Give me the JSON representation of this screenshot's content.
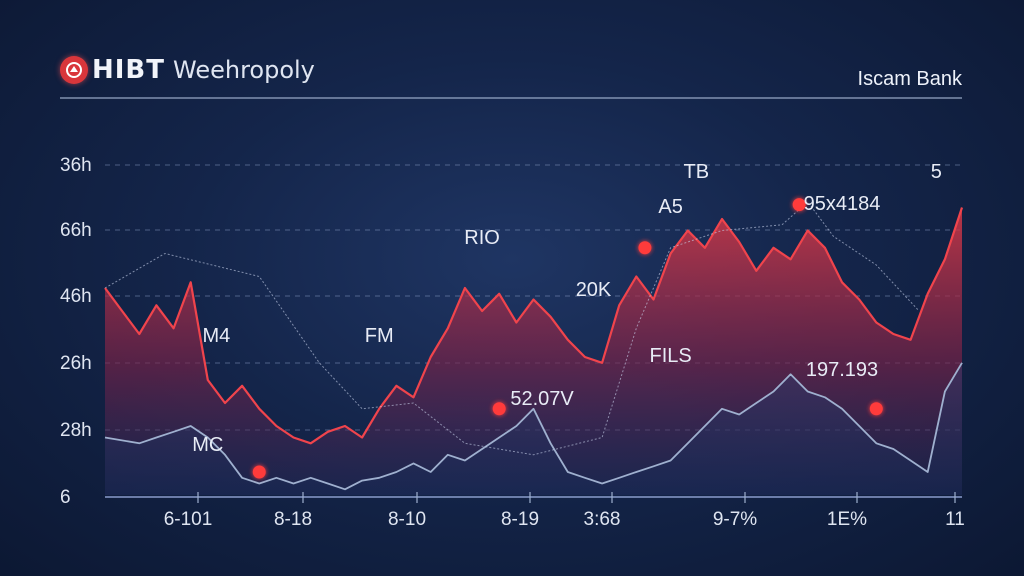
{
  "header": {
    "brand_name": "HIBT",
    "brand_sub": "Weehropoly",
    "bank_name": "Iscam Bank"
  },
  "colors": {
    "background": "#14254a",
    "accent_red": "#f0444c",
    "secondary_line": "#9fb0cf",
    "marker": "#ff3b3b"
  },
  "chart_data": {
    "type": "area",
    "title": "",
    "xlabel": "",
    "ylabel": "",
    "y_tick_labels": [
      "36h",
      "66h",
      "46h",
      "26h",
      "28h",
      "6"
    ],
    "x_tick_labels": [
      "6-101",
      "8-18",
      "8-10",
      "8-19",
      "3:68",
      "9-7%",
      "1E%",
      "11"
    ],
    "ylim": [
      0,
      6
    ],
    "grid": "dashed horizontal",
    "legend": "none",
    "annotations": [
      {
        "text": "TB",
        "x": 0.69,
        "y": 5.6
      },
      {
        "text": "5",
        "x": 0.97,
        "y": 5.6
      },
      {
        "text": "A5",
        "x": 0.66,
        "y": 5.0
      },
      {
        "text": "95x4184",
        "x": 0.86,
        "y": 5.05
      },
      {
        "text": "RIO",
        "x": 0.44,
        "y": 4.45
      },
      {
        "text": "20K",
        "x": 0.57,
        "y": 3.55
      },
      {
        "text": "M4",
        "x": 0.13,
        "y": 2.75
      },
      {
        "text": "FM",
        "x": 0.32,
        "y": 2.75
      },
      {
        "text": "FILS",
        "x": 0.66,
        "y": 2.4
      },
      {
        "text": "197.193",
        "x": 0.86,
        "y": 2.15
      },
      {
        "text": "52.07V",
        "x": 0.51,
        "y": 1.65
      },
      {
        "text": "MC",
        "x": 0.12,
        "y": 0.85
      }
    ],
    "series": [
      {
        "style": "red area",
        "x": [
          0.0,
          0.02,
          0.04,
          0.06,
          0.08,
          0.1,
          0.12,
          0.14,
          0.16,
          0.18,
          0.2,
          0.22,
          0.24,
          0.26,
          0.28,
          0.3,
          0.32,
          0.34,
          0.36,
          0.38,
          0.4,
          0.42,
          0.44,
          0.46,
          0.48,
          0.5,
          0.52,
          0.54,
          0.56,
          0.58,
          0.6,
          0.62,
          0.64,
          0.66,
          0.68,
          0.7,
          0.72,
          0.74,
          0.76,
          0.78,
          0.8,
          0.82,
          0.84,
          0.86,
          0.88,
          0.9,
          0.92,
          0.94,
          0.96,
          0.98,
          1.0
        ],
        "y": [
          3.6,
          3.2,
          2.8,
          3.3,
          2.9,
          3.7,
          2.0,
          1.6,
          1.9,
          1.5,
          1.2,
          1.0,
          0.9,
          1.1,
          1.2,
          1.0,
          1.5,
          1.9,
          1.7,
          2.4,
          2.9,
          3.6,
          3.2,
          3.5,
          3.0,
          3.4,
          3.1,
          2.7,
          2.4,
          2.3,
          3.3,
          3.8,
          3.4,
          4.2,
          4.6,
          4.3,
          4.8,
          4.4,
          3.9,
          4.3,
          4.1,
          4.6,
          4.3,
          3.7,
          3.4,
          3.0,
          2.8,
          2.7,
          3.5,
          4.1,
          5.0
        ]
      },
      {
        "style": "grey line",
        "x": [
          0.0,
          0.04,
          0.06,
          0.08,
          0.1,
          0.12,
          0.14,
          0.16,
          0.18,
          0.2,
          0.22,
          0.24,
          0.26,
          0.28,
          0.3,
          0.32,
          0.34,
          0.36,
          0.38,
          0.4,
          0.42,
          0.44,
          0.46,
          0.48,
          0.5,
          0.52,
          0.54,
          0.56,
          0.58,
          0.6,
          0.62,
          0.64,
          0.66,
          0.68,
          0.7,
          0.72,
          0.74,
          0.76,
          0.78,
          0.8,
          0.82,
          0.84,
          0.86,
          0.88,
          0.9,
          0.92,
          0.94,
          0.96,
          0.98,
          1.0
        ],
        "y": [
          1.0,
          0.9,
          1.0,
          1.1,
          1.2,
          1.0,
          0.7,
          0.3,
          0.2,
          0.3,
          0.2,
          0.3,
          0.2,
          0.1,
          0.25,
          0.3,
          0.4,
          0.55,
          0.4,
          0.7,
          0.6,
          0.8,
          1.0,
          1.2,
          1.5,
          0.9,
          0.4,
          0.3,
          0.2,
          0.3,
          0.4,
          0.5,
          0.6,
          0.9,
          1.2,
          1.5,
          1.4,
          1.6,
          1.8,
          2.1,
          1.8,
          1.7,
          1.5,
          1.2,
          0.9,
          0.8,
          0.6,
          0.4,
          1.8,
          2.3
        ]
      }
    ],
    "markers": [
      {
        "x": 0.18,
        "y": 0.4
      },
      {
        "x": 0.46,
        "y": 1.5
      },
      {
        "x": 0.63,
        "y": 4.3
      },
      {
        "x": 0.81,
        "y": 5.05
      },
      {
        "x": 0.9,
        "y": 1.5
      }
    ]
  }
}
